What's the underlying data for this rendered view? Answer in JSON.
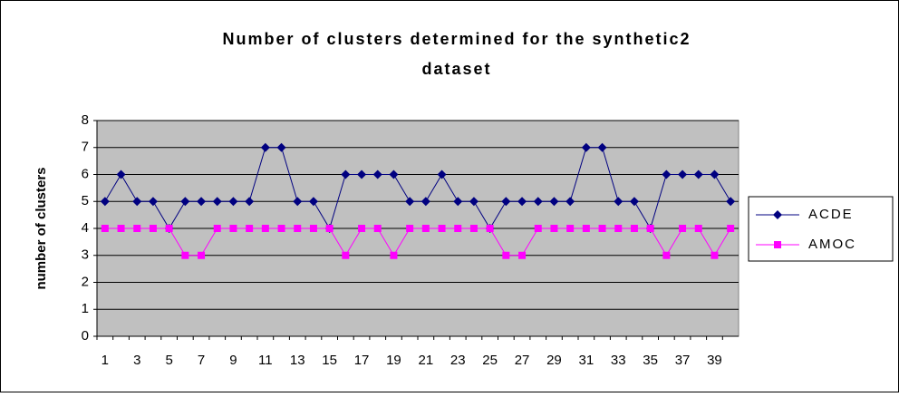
{
  "chart_data": {
    "type": "line",
    "title": [
      "Number of clusters determined for the synthetic2",
      "dataset"
    ],
    "y_label": "number of clusters",
    "categories": [
      1,
      null,
      3,
      null,
      5,
      null,
      7,
      null,
      9,
      null,
      11,
      null,
      13,
      null,
      15,
      null,
      17,
      null,
      19,
      null,
      21,
      null,
      23,
      null,
      25,
      null,
      27,
      null,
      29,
      null,
      31,
      null,
      33,
      null,
      35,
      null,
      37,
      null,
      39,
      null
    ],
    "series": [
      {
        "name": "ACDE",
        "color": "#000080",
        "marker": "diamond",
        "values": [
          5,
          6,
          5,
          5,
          4,
          5,
          5,
          5,
          5,
          5,
          7,
          7,
          5,
          5,
          4,
          6,
          6,
          6,
          6,
          5,
          5,
          6,
          5,
          5,
          4,
          5,
          5,
          5,
          5,
          5,
          7,
          7,
          5,
          5,
          4,
          6,
          6,
          6,
          6,
          5
        ]
      },
      {
        "name": "AMOC",
        "color": "#ff00ff",
        "marker": "square",
        "values": [
          4,
          4,
          4,
          4,
          4,
          3,
          3,
          4,
          4,
          4,
          4,
          4,
          4,
          4,
          4,
          3,
          4,
          4,
          3,
          4,
          4,
          4,
          4,
          4,
          4,
          3,
          3,
          4,
          4,
          4,
          4,
          4,
          4,
          4,
          4,
          3,
          4,
          4,
          3,
          4
        ]
      }
    ],
    "ylim": [
      0,
      8
    ],
    "yticks": [
      0,
      1,
      2,
      3,
      4,
      5,
      6,
      7,
      8
    ],
    "grid": true,
    "legend": "right"
  }
}
